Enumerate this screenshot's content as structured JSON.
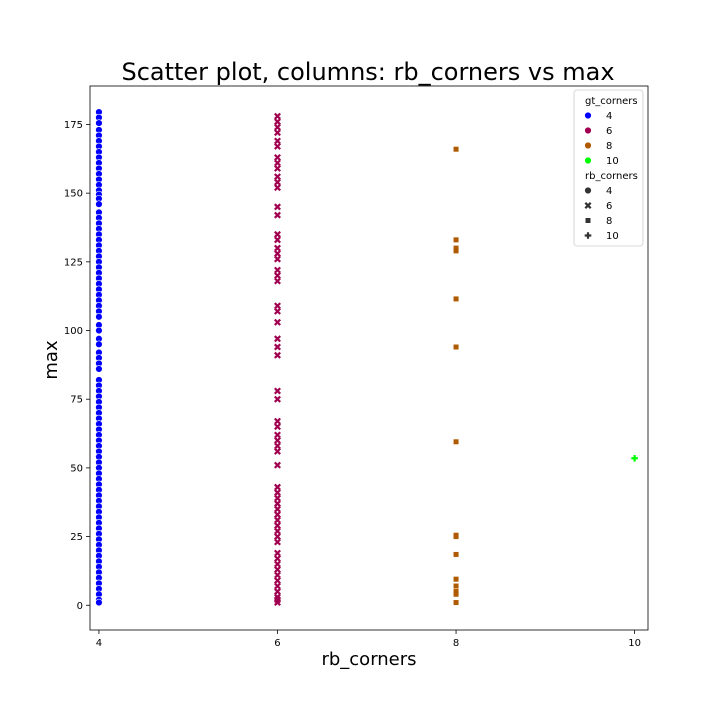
{
  "chart_data": {
    "type": "scatter",
    "title": "Scatter plot, columns: rb_corners vs max",
    "xlabel": "rb_corners",
    "ylabel": "max",
    "xlim": [
      3.9,
      10.15
    ],
    "ylim": [
      -9,
      189
    ],
    "x_ticks": [
      4,
      6,
      8,
      10
    ],
    "y_ticks": [
      0,
      25,
      50,
      75,
      100,
      125,
      150,
      175
    ],
    "grid": false,
    "legend": {
      "position": "top-right",
      "hue_title": "gt_corners",
      "style_title": "rb_corners",
      "hue_entries": [
        {
          "label": "4",
          "color": "#0000ff"
        },
        {
          "label": "6",
          "color": "#a0004f"
        },
        {
          "label": "8",
          "color": "#b05a00"
        },
        {
          "label": "10",
          "color": "#00ff00"
        }
      ],
      "style_entries": [
        {
          "label": "4",
          "marker": "circle"
        },
        {
          "label": "6",
          "marker": "x"
        },
        {
          "label": "8",
          "marker": "square"
        },
        {
          "label": "10",
          "marker": "plus"
        }
      ]
    },
    "series": [
      {
        "name": "4",
        "x_value": 4,
        "marker": "circle",
        "color": "#0000ff",
        "y": [
          179.5,
          177.5,
          175.5,
          173,
          171,
          169,
          167,
          165,
          163,
          161,
          159,
          157,
          155,
          153,
          151,
          149.5,
          148,
          146,
          143,
          141,
          139,
          137,
          135,
          133,
          131,
          129,
          127,
          125,
          123,
          121,
          119,
          117,
          115,
          113,
          111,
          109,
          107,
          105,
          102,
          100,
          97,
          95,
          92,
          90,
          88,
          86,
          82,
          80,
          78,
          76,
          74,
          72,
          70,
          68,
          66,
          64,
          62,
          60,
          58,
          56,
          54,
          52,
          50,
          48,
          46,
          44,
          42,
          40,
          38,
          36,
          34,
          32,
          30,
          28,
          26,
          24,
          22,
          20,
          18,
          16,
          14,
          12,
          10,
          8,
          6,
          4,
          2,
          1
        ]
      },
      {
        "name": "6",
        "x_value": 6,
        "marker": "x",
        "color": "#a0004f",
        "y": [
          178,
          176,
          174,
          172,
          169,
          167,
          163,
          161,
          159,
          156,
          154,
          152,
          145,
          142,
          135,
          133,
          130,
          128,
          126,
          122,
          120,
          118,
          109,
          107,
          103,
          97,
          94,
          91,
          78,
          75,
          67,
          65,
          62,
          60,
          58,
          56,
          51,
          43,
          41,
          39,
          37,
          35,
          33,
          31,
          29,
          27,
          25,
          23,
          19,
          17,
          15,
          13,
          11,
          9,
          7,
          5,
          3,
          2,
          1
        ]
      },
      {
        "name": "8",
        "x_value": 8,
        "marker": "square",
        "color": "#b05a00",
        "y": [
          166,
          133,
          130,
          129,
          111.5,
          94,
          59.5,
          25.5,
          25,
          18.5,
          9.5,
          7,
          5,
          4,
          1
        ]
      },
      {
        "name": "10",
        "x_value": 10,
        "marker": "plus",
        "color": "#00ff00",
        "y": [
          53.5
        ]
      }
    ]
  }
}
